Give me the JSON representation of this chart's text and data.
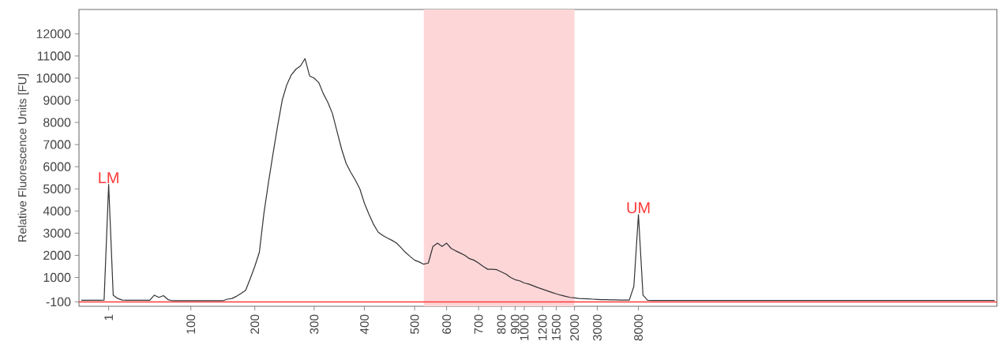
{
  "chart_data": {
    "type": "line",
    "ylabel": "Relative Fluorescence Units [FU]",
    "ylim": [
      -300,
      13100
    ],
    "categories": [
      null,
      null,
      null,
      null,
      null,
      null,
      "1",
      null,
      null,
      null,
      null,
      null,
      null,
      null,
      null,
      null,
      null,
      null,
      null,
      null,
      null,
      null,
      null,
      null,
      "100",
      null,
      null,
      null,
      null,
      null,
      null,
      null,
      null,
      null,
      null,
      null,
      null,
      null,
      "200",
      null,
      null,
      null,
      null,
      null,
      null,
      null,
      null,
      null,
      null,
      null,
      null,
      "300",
      null,
      null,
      null,
      null,
      null,
      null,
      null,
      null,
      null,
      null,
      "400",
      null,
      null,
      null,
      null,
      null,
      null,
      null,
      null,
      null,
      null,
      "500",
      null,
      null,
      null,
      null,
      null,
      null,
      "600",
      null,
      null,
      null,
      null,
      null,
      null,
      "700",
      null,
      null,
      null,
      null,
      "800",
      null,
      null,
      "900",
      null,
      "1000",
      null,
      null,
      null,
      "1200",
      null,
      null,
      "1500",
      null,
      null,
      null,
      "2000",
      null,
      null,
      null,
      null,
      "3000",
      null,
      null,
      null,
      null,
      null,
      null,
      null,
      null,
      "8000",
      null,
      null,
      null,
      null,
      null,
      null,
      null,
      null,
      null,
      null,
      null,
      null,
      null,
      null,
      null,
      null,
      null,
      null,
      null,
      null,
      null,
      null,
      null,
      null,
      null,
      null,
      null,
      null,
      null,
      null,
      null,
      null,
      null,
      null,
      null,
      null,
      null,
      null,
      null,
      null,
      null,
      null,
      null,
      null,
      null,
      null,
      null,
      null,
      null,
      null,
      null,
      null,
      null,
      null,
      null,
      null,
      null,
      null,
      null,
      null,
      null,
      null,
      null,
      null,
      null,
      null,
      null,
      null,
      null,
      null,
      null,
      null,
      null,
      null,
      null,
      null,
      null,
      null
    ],
    "yticks": [
      -100,
      1000,
      2000,
      3000,
      4000,
      5000,
      6000,
      7000,
      8000,
      9000,
      10000,
      11000,
      12000
    ],
    "series": [
      {
        "color": "#333333",
        "values": [
          -30,
          -30,
          -30,
          -30,
          -30,
          -20,
          5200,
          200,
          50,
          -20,
          -30,
          -30,
          -30,
          -30,
          -30,
          -30,
          200,
          100,
          180,
          0,
          -50,
          -50,
          -50,
          -50,
          -50,
          -50,
          -50,
          -50,
          -50,
          -50,
          -50,
          -50,
          20,
          50,
          150,
          280,
          420,
          950,
          1500,
          2140,
          3900,
          5300,
          6600,
          7850,
          9000,
          9700,
          10150,
          10400,
          10550,
          10880,
          10100,
          10000,
          9800,
          9300,
          8900,
          8400,
          7600,
          6800,
          6150,
          5750,
          5400,
          5000,
          4350,
          3850,
          3400,
          3050,
          2900,
          2780,
          2680,
          2560,
          2350,
          2130,
          1950,
          1780,
          1700,
          1600,
          1650,
          2400,
          2550,
          2400,
          2550,
          2310,
          2200,
          2100,
          2000,
          1850,
          1780,
          1650,
          1500,
          1370,
          1370,
          1350,
          1250,
          1150,
          1000,
          900,
          850,
          750,
          700,
          620,
          540,
          470,
          400,
          330,
          260,
          200,
          150,
          100,
          80,
          50,
          40,
          30,
          20,
          10,
          0,
          0,
          -10,
          -10,
          -20,
          -20,
          -20,
          600,
          3840,
          200,
          -30,
          -40,
          -40,
          -40,
          -40,
          -40,
          -40,
          -40,
          -40,
          -40,
          -40,
          -40,
          -40,
          -40,
          -40,
          -40,
          -40,
          -40,
          -40,
          -40,
          -40,
          -40,
          -40,
          -40,
          -40,
          -40,
          -40,
          -40,
          -40,
          -40,
          -40,
          -40,
          -40,
          -40,
          -40,
          -40,
          -40,
          -40,
          -40,
          -40,
          -40,
          -40,
          -40,
          -40,
          -40,
          -40,
          -40,
          -40,
          -40,
          -40,
          -40,
          -40,
          -40,
          -40,
          -40,
          -40,
          -40,
          -40,
          -40,
          -40,
          -40,
          -40,
          -40,
          -40,
          -40,
          -40,
          -40,
          -40,
          -40,
          -40,
          -40,
          -40,
          -40,
          -40,
          -40,
          -40,
          -40
        ]
      }
    ],
    "ref_lines": [
      {
        "axis": "y",
        "value": -100,
        "color": "#ff3b3b"
      }
    ],
    "annotations": [
      {
        "text": "LM",
        "x": "1",
        "y": 5200
      },
      {
        "text": "UM",
        "x": "8000",
        "y": 3840
      }
    ],
    "grid": false,
    "marker": "none",
    "line_style": "solid"
  }
}
